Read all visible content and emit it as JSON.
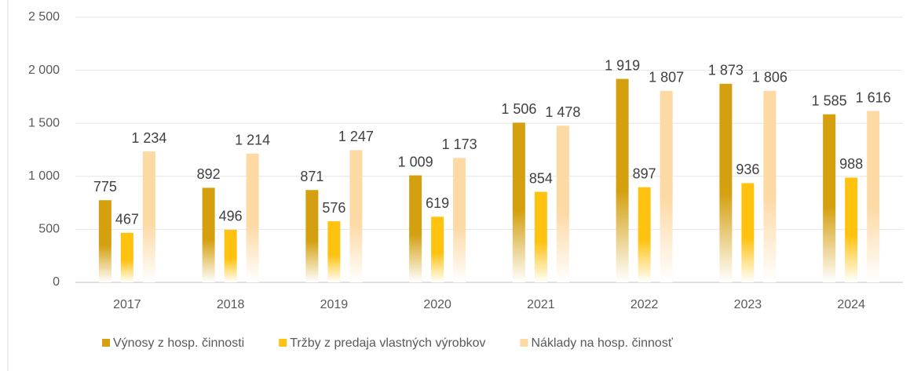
{
  "chart_data": {
    "type": "bar",
    "categories": [
      "2017",
      "2018",
      "2019",
      "2020",
      "2021",
      "2022",
      "2023",
      "2024"
    ],
    "series": [
      {
        "name": "Výnosy z hosp. činnosti",
        "color": "#d4a010",
        "values": [
          775,
          892,
          871,
          1009,
          1506,
          1919,
          1873,
          1585
        ],
        "value_labels": [
          "775",
          "892",
          "871",
          "1 009",
          "1 506",
          "1 919",
          "1 873",
          "1 585"
        ]
      },
      {
        "name": "Tržby z predaja vlastných výrobkov",
        "color": "#ffc20e",
        "values": [
          467,
          496,
          576,
          619,
          854,
          897,
          936,
          988
        ],
        "value_labels": [
          "467",
          "496",
          "576",
          "619",
          "854",
          "897",
          "936",
          "988"
        ]
      },
      {
        "name": "Náklady na hosp. činnosť",
        "color": "#fdd9a4",
        "values": [
          1234,
          1214,
          1247,
          1173,
          1478,
          1807,
          1806,
          1616
        ],
        "value_labels": [
          "1 234",
          "1 214",
          "1 247",
          "1 173",
          "1 478",
          "1 807",
          "1 806",
          "1 616"
        ]
      }
    ],
    "ylim": [
      0,
      2500
    ],
    "yticks": [
      0,
      500,
      {
        "value": 1000,
        "label": "1 000"
      },
      {
        "value": 1500,
        "label": "1 500"
      },
      {
        "value": 2000,
        "label": "2 000"
      },
      {
        "value": 2500,
        "label": "2 500"
      }
    ],
    "grid": true,
    "legend": "bottom"
  }
}
